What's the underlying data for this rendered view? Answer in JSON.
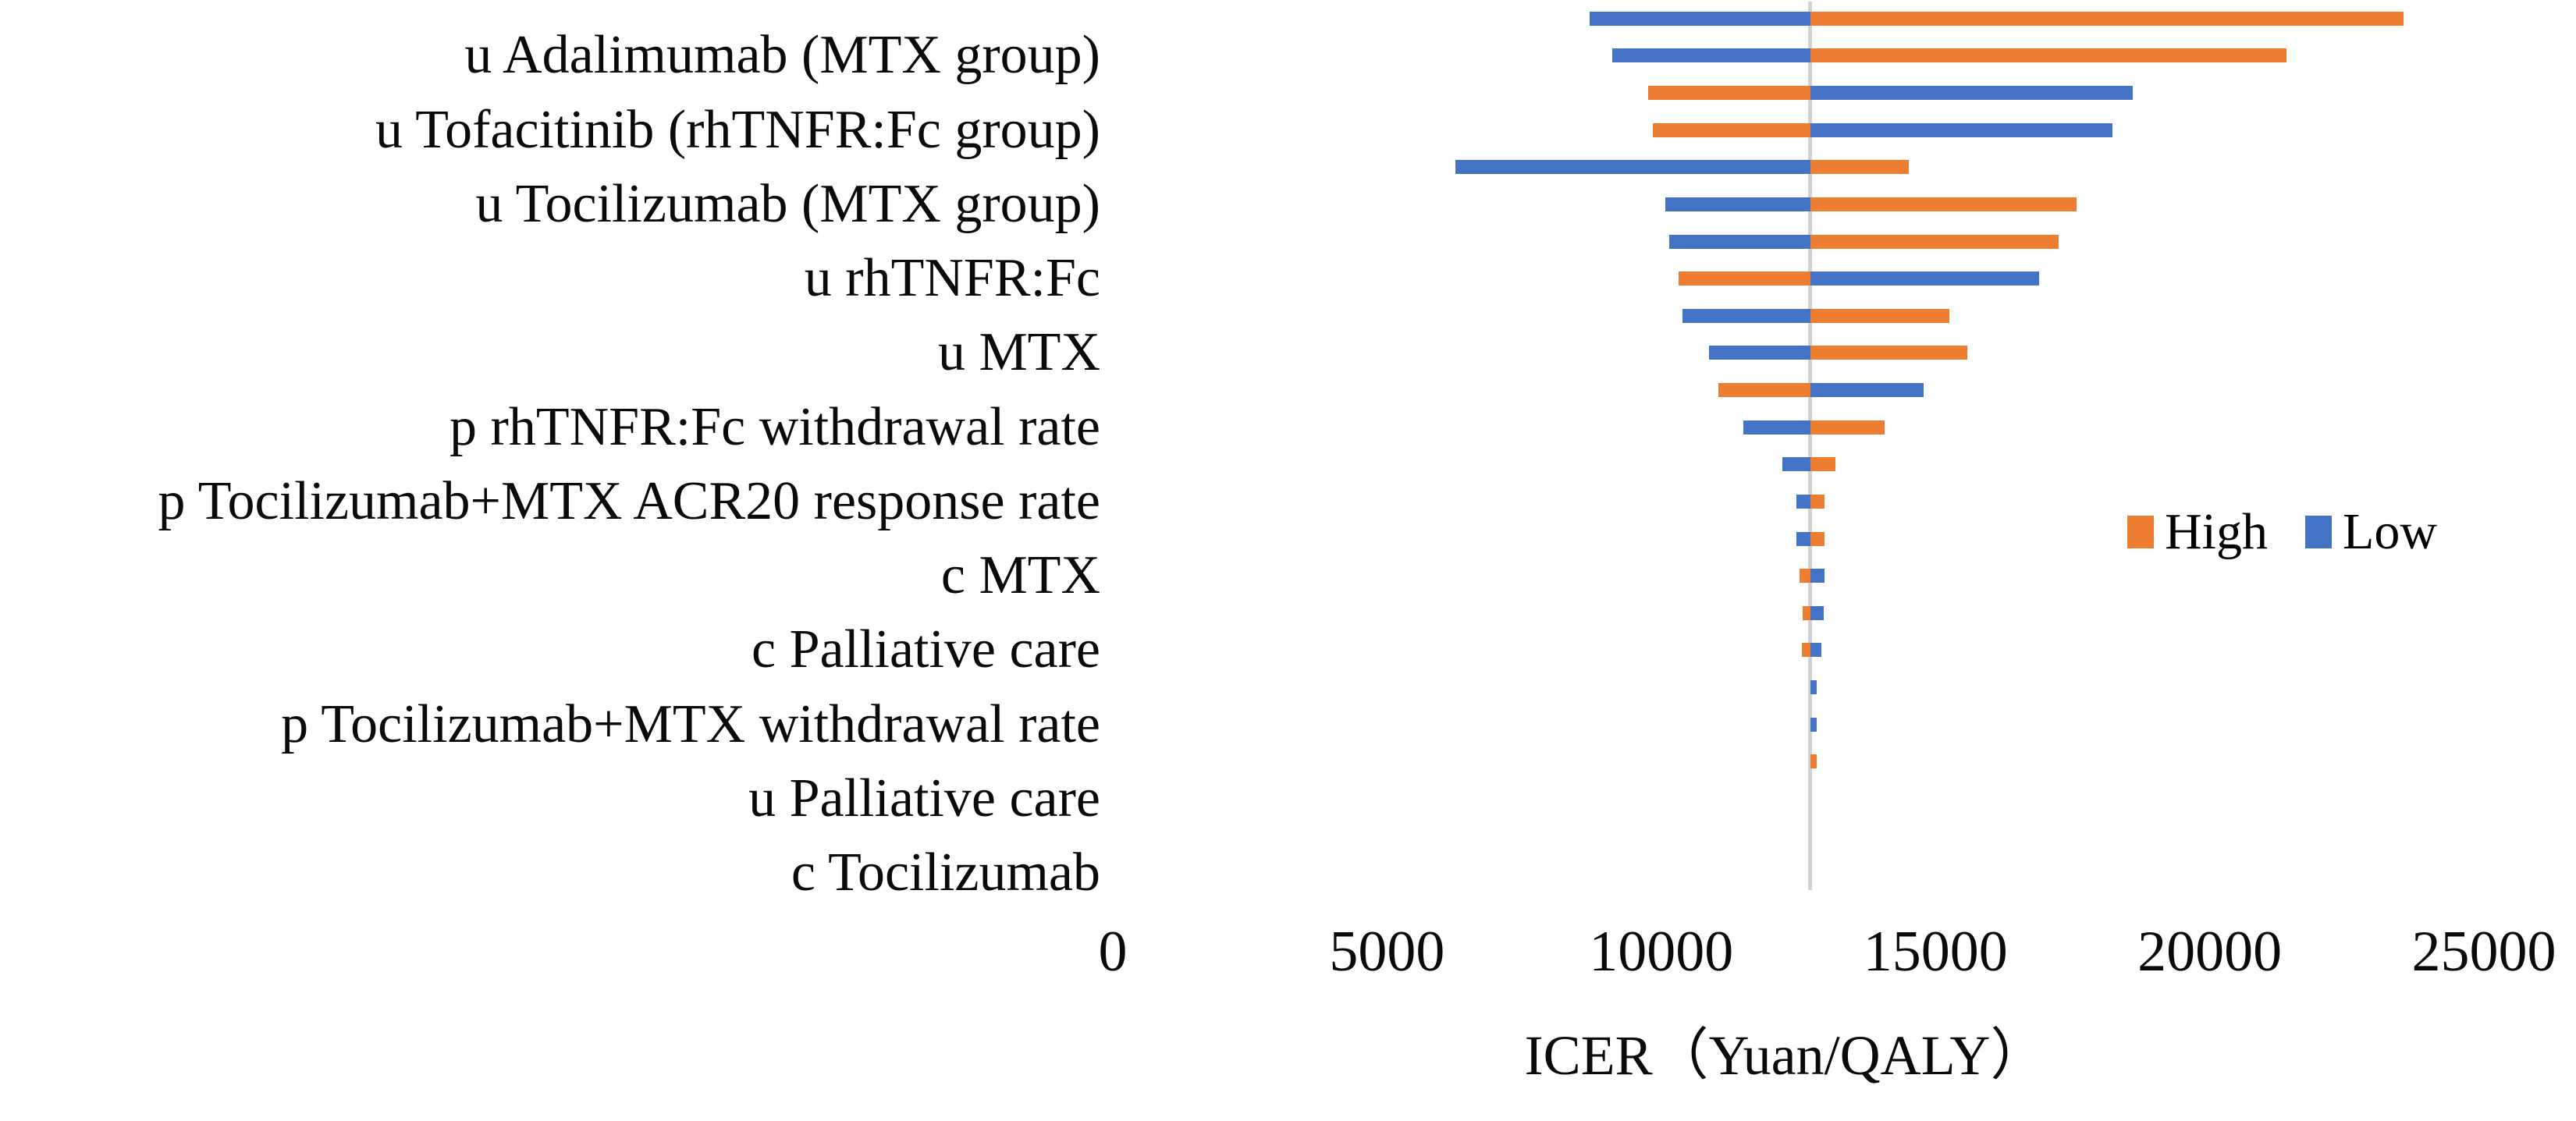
{
  "chart_data": {
    "type": "bar",
    "subtype": "tornado",
    "title": "",
    "xlabel": "ICER（Yuan/QALY）",
    "x_range": [
      0,
      25000
    ],
    "x_ticks": [
      0,
      5000,
      10000,
      15000,
      20000,
      25000
    ],
    "baseline": 12720,
    "grid": "off",
    "legend_position": "right-middle",
    "layout_hint": "24 parameter rows sorted by decreasing range; only alternate category labels are displayed",
    "legend": [
      {
        "label": "High",
        "color": "#ED7D31"
      },
      {
        "label": "Low",
        "color": "#4472C4"
      }
    ],
    "colors": {
      "high": "#ED7D31",
      "low": "#4472C4",
      "baseline_line": "#d2d2d2"
    },
    "rows": [
      {
        "label": "",
        "low": 8700,
        "high": 23535
      },
      {
        "label": "u Adalimumab (MTX group)",
        "low": 9105,
        "high": 21400
      },
      {
        "label": "",
        "low": 18600,
        "high": 9760
      },
      {
        "label": "u Tofacitinib (rhTNFR:Fc group)",
        "low": 18230,
        "high": 9850
      },
      {
        "label": "",
        "low": 6250,
        "high": 14515
      },
      {
        "label": "u Tocilizumab (MTX group)",
        "low": 10075,
        "high": 17575
      },
      {
        "label": "",
        "low": 10145,
        "high": 17250
      },
      {
        "label": "u rhTNFR:Fc",
        "low": 16890,
        "high": 10315
      },
      {
        "label": "",
        "low": 10390,
        "high": 15255
      },
      {
        "label": "u MTX",
        "low": 10870,
        "high": 15580
      },
      {
        "label": "",
        "low": 14785,
        "high": 11040
      },
      {
        "label": "p rhTNFR:Fc withdrawal rate",
        "low": 11500,
        "high": 14075
      },
      {
        "label": "",
        "low": 12215,
        "high": 13180
      },
      {
        "label": "p Tocilizumab+MTX ACR20 response rate",
        "low": 12460,
        "high": 12975
      },
      {
        "label": "",
        "low": 12460,
        "high": 12975
      },
      {
        "label": "c MTX",
        "low": 12975,
        "high": 12520
      },
      {
        "label": "",
        "low": 12960,
        "high": 12580
      },
      {
        "label": "c Palliative care",
        "low": 12920,
        "high": 12565
      },
      {
        "label": "",
        "low": 12840,
        "high": 12720
      },
      {
        "label": "p Tocilizumab+MTX withdrawal rate",
        "low": 12840,
        "high": 12720
      },
      {
        "label": "",
        "low": 12720,
        "high": 12830
      },
      {
        "label": "u Palliative care",
        "low": 12720,
        "high": 12720
      },
      {
        "label": "",
        "low": 12720,
        "high": 12720
      },
      {
        "label": "c Tocilizumab",
        "low": 12720,
        "high": 12720
      }
    ]
  }
}
